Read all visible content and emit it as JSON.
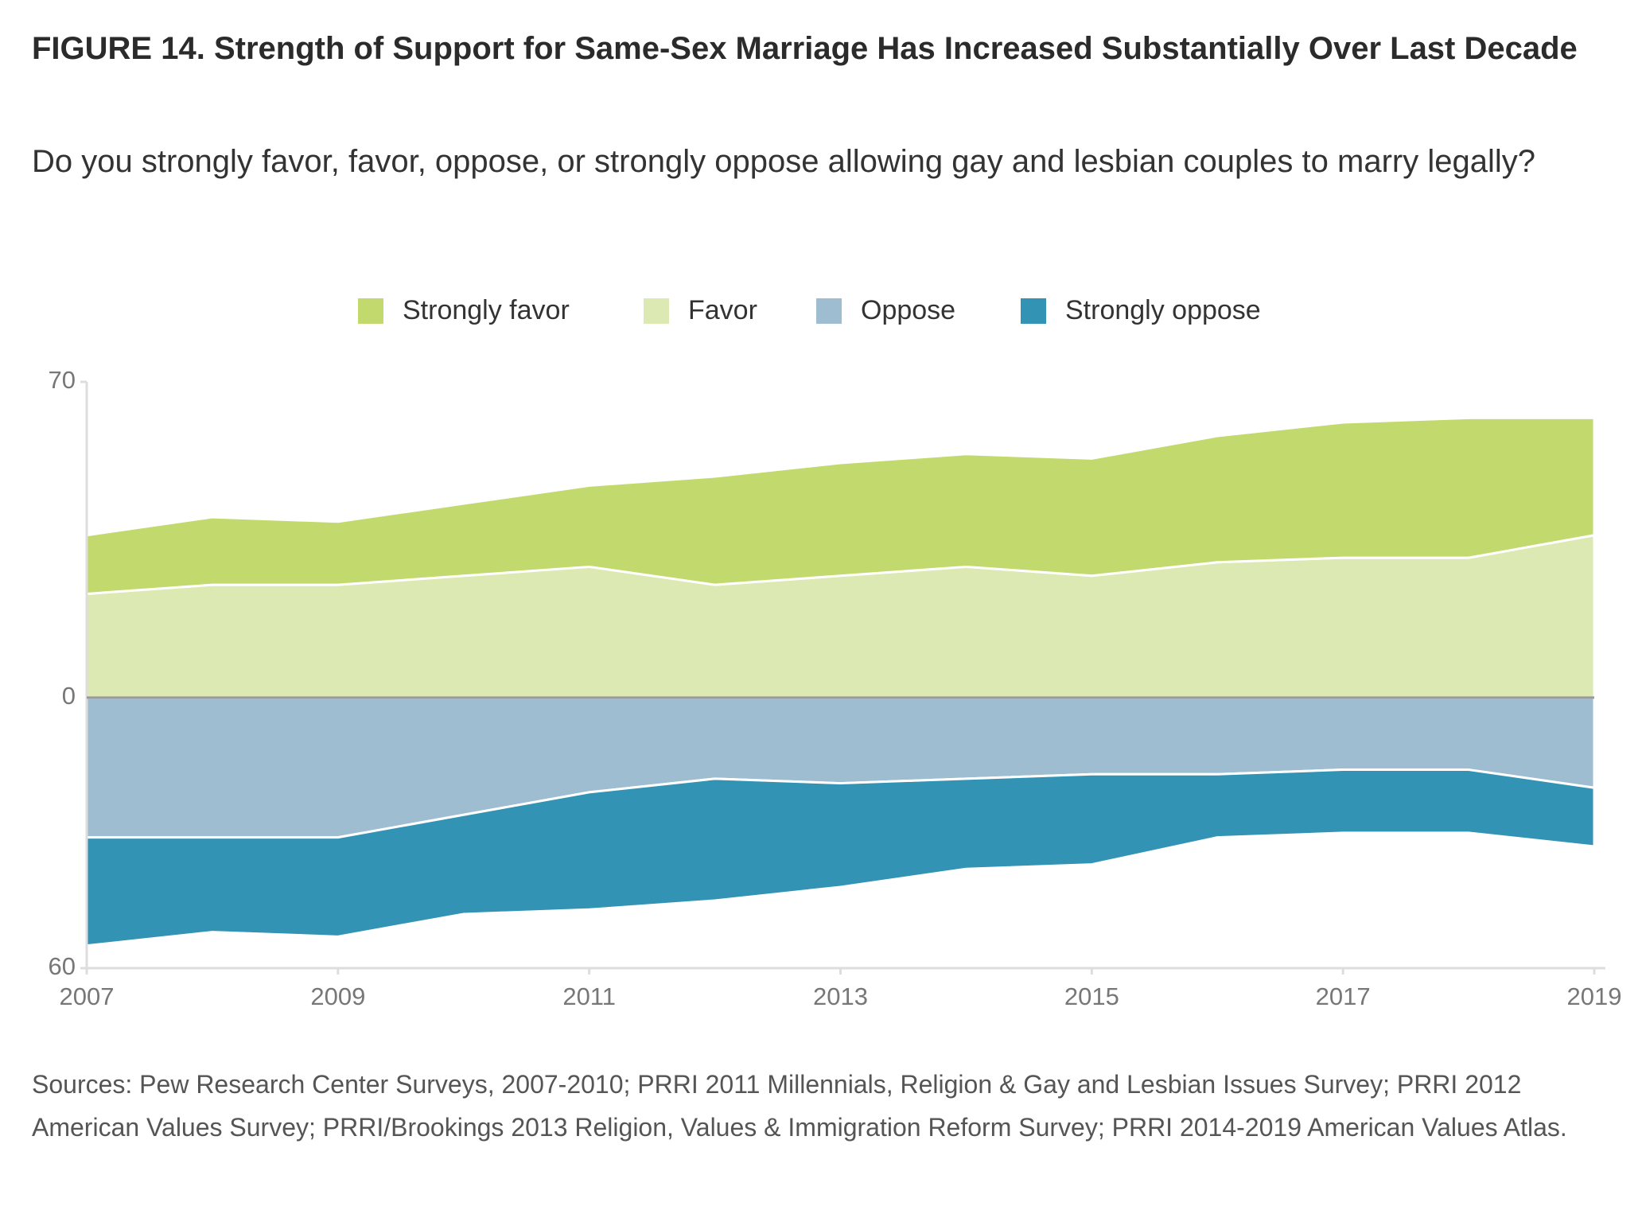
{
  "chart_data": {
    "type": "diverging_stacked_area",
    "title": "FIGURE 14.  Strength of Support for Same-Sex Marriage Has Increased Substantially Over Last Decade",
    "subtitle": "Do you strongly favor, favor, oppose, or strongly oppose allowing gay and lesbian couples to marry legally?",
    "x": [
      2007,
      2008,
      2009,
      2010,
      2011,
      2012,
      2013,
      2014,
      2015,
      2016,
      2017,
      2018,
      2019
    ],
    "xlim": [
      2007,
      2019
    ],
    "xticks": [
      2007,
      2009,
      2011,
      2013,
      2015,
      2017,
      2019
    ],
    "ylim": [
      -60,
      70
    ],
    "yticks": [
      {
        "value": -60,
        "label": "60"
      },
      0,
      70
    ],
    "series": [
      {
        "name": "Strongly favor",
        "color": "#c2d96e",
        "values": [
          13,
          15,
          14,
          16,
          18,
          24,
          25,
          25,
          26,
          28,
          30,
          31,
          26
        ]
      },
      {
        "name": "Favor",
        "color": "#dde9b3",
        "values": [
          23,
          25,
          25,
          27,
          29,
          25,
          27,
          29,
          27,
          30,
          31,
          31,
          36
        ]
      },
      {
        "name": "Oppose",
        "color": "#9ebdd0",
        "values": [
          -31,
          -31,
          -31,
          -26,
          -21,
          -18,
          -19,
          -18,
          -17,
          -17,
          -16,
          -16,
          -20
        ]
      },
      {
        "name": "Strongly oppose",
        "color": "#3293b4",
        "values": [
          -24,
          -21,
          -22,
          -22,
          -26,
          -27,
          -23,
          -20,
          -20,
          -14,
          -14,
          -14,
          -13
        ]
      }
    ],
    "legend": "top",
    "source": "Sources: Pew Research Center Surveys, 2007-2010; PRRI 2011 Millennials, Religion & Gay and Lesbian Issues Survey; PRRI 2012 American Values Survey; PRRI/Brookings 2013 Religion, Values & Immigration Reform Survey; PRRI 2014-2019 American Values Atlas."
  }
}
